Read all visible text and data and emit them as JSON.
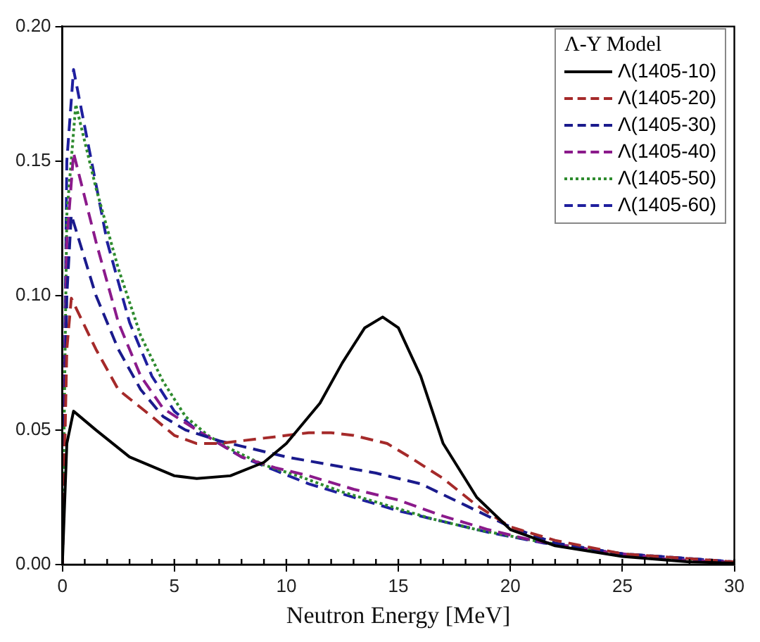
{
  "chart_data": {
    "type": "line",
    "xlabel": "Neutron Energy [MeV]",
    "legend_title": "Λ-Y Model",
    "xlim": [
      0,
      30
    ],
    "xticks": [
      0,
      5,
      10,
      15,
      20,
      25,
      30
    ],
    "ylim": [
      0,
      0.2
    ],
    "yticks": [
      {
        "value": 0,
        "label": "0.00"
      },
      0.05,
      {
        "value": 0.1,
        "label": "0.10"
      },
      0.15,
      {
        "value": 0.2,
        "label": "0.20"
      }
    ],
    "grid": false,
    "legend": "top right",
    "marker": "none",
    "series": [
      {
        "name": "Λ(1405-10)",
        "color": "#000000",
        "line_style": "solid",
        "x": [
          0,
          0.2,
          0.5,
          1.5,
          3,
          5,
          6,
          7.5,
          9,
          10,
          11.5,
          12.5,
          13.5,
          14.3,
          15,
          16,
          17,
          18.5,
          20,
          22,
          25,
          28,
          30
        ],
        "values": [
          0,
          0.045,
          0.057,
          0.05,
          0.04,
          0.033,
          0.032,
          0.033,
          0.038,
          0.045,
          0.06,
          0.075,
          0.088,
          0.092,
          0.088,
          0.07,
          0.045,
          0.025,
          0.013,
          0.007,
          0.003,
          0.001,
          0.0005
        ]
      },
      {
        "name": "Λ(1405-20)",
        "color": "#a52a2a",
        "line_style": "dashed",
        "x": [
          0,
          0.2,
          0.4,
          1.5,
          2.5,
          4,
          5,
          6,
          7,
          8,
          9,
          10,
          11,
          12,
          13,
          14.5,
          15.5,
          17,
          18.5,
          20,
          22,
          25,
          30
        ],
        "values": [
          0,
          0.08,
          0.099,
          0.08,
          0.065,
          0.055,
          0.048,
          0.045,
          0.045,
          0.046,
          0.047,
          0.048,
          0.049,
          0.049,
          0.048,
          0.045,
          0.04,
          0.032,
          0.022,
          0.014,
          0.009,
          0.004,
          0.001
        ]
      },
      {
        "name": "Λ(1405-30)",
        "color": "#1a1a8c",
        "line_style": "dashed",
        "x": [
          0,
          0.2,
          0.4,
          1.5,
          2.5,
          3.5,
          4.5,
          5.5,
          7,
          8,
          9,
          10,
          12,
          14,
          16,
          18,
          20,
          22,
          25,
          30
        ],
        "values": [
          0,
          0.1,
          0.13,
          0.1,
          0.08,
          0.065,
          0.055,
          0.05,
          0.046,
          0.044,
          0.042,
          0.04,
          0.037,
          0.034,
          0.03,
          0.022,
          0.014,
          0.008,
          0.004,
          0.001
        ]
      },
      {
        "name": "Λ(1405-40)",
        "color": "#8b1a8b",
        "line_style": "dashed",
        "x": [
          0,
          0.2,
          0.5,
          1.5,
          2.5,
          3.5,
          4.5,
          6,
          7,
          8,
          9.5,
          11,
          13,
          15,
          17,
          19,
          21,
          24,
          27,
          30
        ],
        "values": [
          0,
          0.12,
          0.153,
          0.12,
          0.09,
          0.07,
          0.058,
          0.05,
          0.045,
          0.04,
          0.036,
          0.033,
          0.028,
          0.024,
          0.018,
          0.013,
          0.009,
          0.005,
          0.002,
          0.0008
        ]
      },
      {
        "name": "Λ(1405-50)",
        "color": "#2e8b2e",
        "line_style": "dotted",
        "x": [
          0,
          0.2,
          0.6,
          1.5,
          2.5,
          3.5,
          4.5,
          5.5,
          6.5,
          7.5,
          9,
          10.5,
          12.5,
          14.5,
          16.5,
          18.5,
          21,
          24,
          27,
          30
        ],
        "values": [
          0,
          0.13,
          0.171,
          0.14,
          0.11,
          0.085,
          0.068,
          0.055,
          0.048,
          0.043,
          0.037,
          0.033,
          0.027,
          0.022,
          0.017,
          0.013,
          0.009,
          0.005,
          0.002,
          0.0008
        ]
      },
      {
        "name": "Λ(1405-60)",
        "color": "#1f1f9e",
        "line_style": "dashed",
        "x": [
          0,
          0.2,
          0.5,
          1.3,
          2,
          3,
          4,
          5,
          6,
          7,
          8,
          9.5,
          11,
          13,
          15,
          17,
          19,
          21.5,
          25,
          30
        ],
        "values": [
          0,
          0.15,
          0.184,
          0.15,
          0.12,
          0.09,
          0.07,
          0.057,
          0.05,
          0.045,
          0.04,
          0.035,
          0.03,
          0.025,
          0.02,
          0.016,
          0.012,
          0.008,
          0.004,
          0.001
        ]
      }
    ]
  }
}
